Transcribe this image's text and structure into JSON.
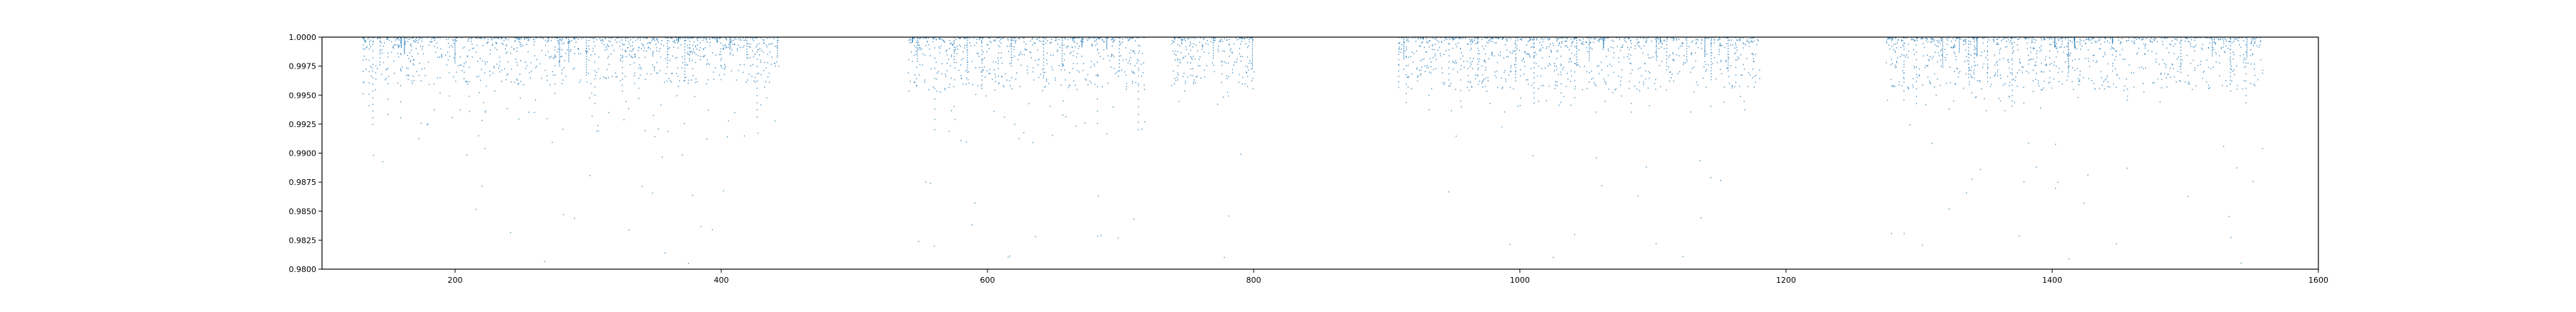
{
  "chart_data": {
    "type": "scatter",
    "title": "",
    "xlabel": "",
    "ylabel": "",
    "xlim": [
      100,
      1600
    ],
    "ylim": [
      0.98,
      1.0
    ],
    "x_ticks": [
      200,
      400,
      600,
      800,
      1000,
      1200,
      1400,
      1600
    ],
    "y_ticks": [
      0.98,
      0.9825,
      0.985,
      0.9875,
      0.99,
      0.9925,
      0.995,
      0.9975,
      1.0
    ],
    "y_tick_labels": [
      "0.9800",
      "0.9825",
      "0.9850",
      "0.9875",
      "0.9900",
      "0.9925",
      "0.9950",
      "0.9975",
      "1.0000"
    ],
    "grid": false,
    "legend": "none",
    "series": [
      {
        "color": "#1f77b4",
        "marker": "point",
        "segments": [
          {
            "x_start": 130,
            "x_end": 443,
            "typical_min": 0.996,
            "deepest": 0.9912
          },
          {
            "x_start": 540,
            "x_end": 718,
            "typical_min": 0.9955,
            "deepest": 0.991
          },
          {
            "x_start": 738,
            "x_end": 800,
            "typical_min": 0.996,
            "deepest": 0.9938
          },
          {
            "x_start": 908,
            "x_end": 1180,
            "typical_min": 0.9955,
            "deepest": 0.9935
          },
          {
            "x_start": 1275,
            "x_end": 1558,
            "typical_min": 0.9955,
            "deepest": 0.9935
          }
        ]
      }
    ]
  }
}
